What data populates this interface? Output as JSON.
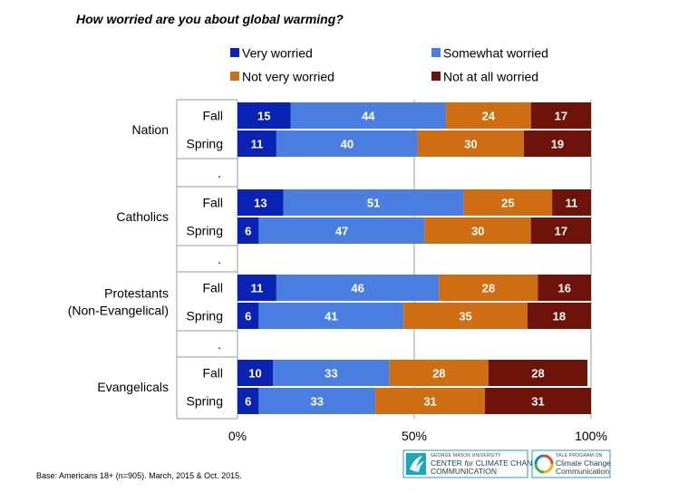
{
  "chart_data": {
    "type": "bar",
    "orientation": "horizontal",
    "stacked": true,
    "title": "How worried are you about global warming?",
    "xlim": [
      0,
      100
    ],
    "x_ticks": [
      "0%",
      "50%",
      "100%"
    ],
    "grid": true,
    "legend_placement": "top",
    "series": [
      {
        "name": "Very worried",
        "color": "#0a23b5"
      },
      {
        "name": "Somewhat worried",
        "color": "#4a7ee0"
      },
      {
        "name": "Not very worried",
        "color": "#cf6d12"
      },
      {
        "name": "Not at all worried",
        "color": "#6e1309"
      }
    ],
    "separator_label": ".",
    "groups": [
      {
        "label": [
          "Nation"
        ],
        "bars": [
          {
            "period": "Fall",
            "values": [
              15,
              44,
              24,
              17
            ]
          },
          {
            "period": "Spring",
            "values": [
              11,
              40,
              30,
              19
            ]
          }
        ]
      },
      {
        "label": [
          "Catholics"
        ],
        "bars": [
          {
            "period": "Fall",
            "values": [
              13,
              51,
              25,
              11
            ]
          },
          {
            "period": "Spring",
            "values": [
              6,
              47,
              30,
              17
            ]
          }
        ]
      },
      {
        "label": [
          "Protestants",
          "(Non-Evangelical)"
        ],
        "bars": [
          {
            "period": "Fall",
            "values": [
              11,
              46,
              28,
              16
            ]
          },
          {
            "period": "Spring",
            "values": [
              6,
              41,
              35,
              18
            ]
          }
        ]
      },
      {
        "label": [
          "Evangelicals"
        ],
        "bars": [
          {
            "period": "Fall",
            "values": [
              10,
              33,
              28,
              28
            ]
          },
          {
            "period": "Spring",
            "values": [
              6,
              33,
              31,
              31
            ]
          }
        ]
      }
    ]
  },
  "footer": {
    "source": "Base: Americans 18+ (n=905). March, 2015 & Oct. 2015."
  },
  "logos": {
    "gmu": {
      "small": "GEORGE MASON UNIVERSITY",
      "line1_a": "CENTER ",
      "line1_b": "for",
      "line1_c": " CLIMATE CHANGE",
      "line2": "COMMUNICATION"
    },
    "yale": {
      "small": "YALE PROGRAM ON",
      "line1": "Climate Change",
      "line2": "Communication"
    }
  }
}
